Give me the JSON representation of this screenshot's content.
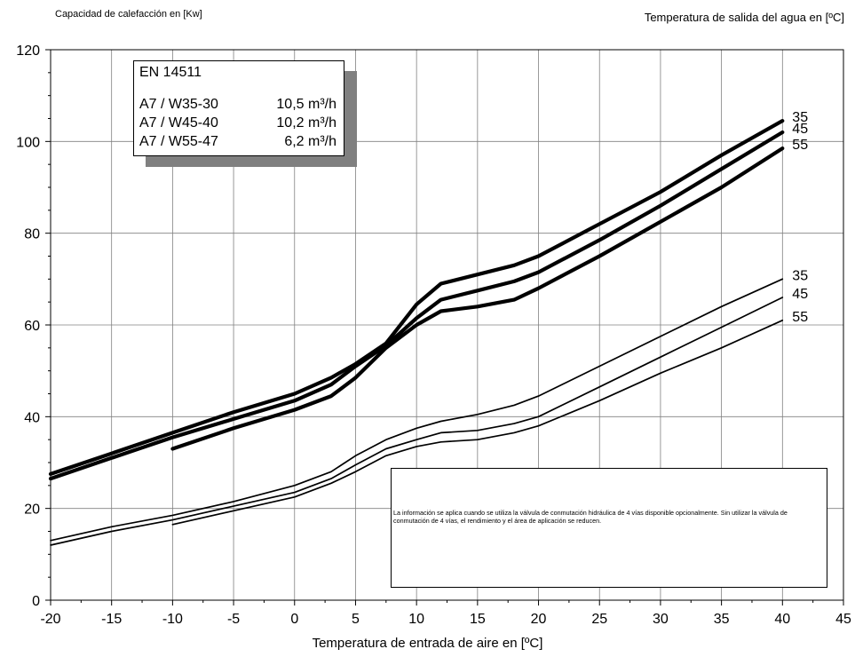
{
  "header": {
    "left_label": "Capacidad de calefacción en [Kw]",
    "right_label": "Temperatura de salida del agua en [ºC]"
  },
  "standard_box": {
    "title": "EN 14511",
    "rows": [
      {
        "label": "A7 / W35-30",
        "value": "10,5 m³/h"
      },
      {
        "label": "A7 / W45-40",
        "value": "10,2 m³/h"
      },
      {
        "label": "A7 / W55-47",
        "value": "6,2 m³/h"
      }
    ]
  },
  "note": {
    "text": "La información se aplica cuando se utiliza la válvula de conmutación hidráulica de 4 vías disponible opcionalmente. Sin utilizar la válvula de conmutación de 4 vías, el rendimiento y el área de aplicación se reducen."
  },
  "colors": {
    "line": "#000000",
    "grid": "#808080",
    "shadow": "#808080"
  },
  "chart_data": {
    "type": "line",
    "title": "",
    "xlabel": "Temperatura de entrada de aire en [ºC]",
    "ylabel": "Capacidad de calefacción en [Kw]",
    "xlim": [
      -20,
      45
    ],
    "ylim": [
      0,
      120
    ],
    "x_ticks": [
      -20,
      -15,
      -10,
      -5,
      0,
      5,
      10,
      15,
      20,
      25,
      30,
      35,
      40,
      45
    ],
    "y_ticks": [
      0,
      20,
      40,
      60,
      80,
      100,
      120
    ],
    "grid": true,
    "series": [
      {
        "name": "35",
        "group": "max",
        "weight": "thick",
        "x": [
          -20,
          -15,
          -10,
          -5,
          0,
          3,
          5,
          7.5,
          10,
          12,
          15,
          18,
          20,
          25,
          30,
          35,
          40
        ],
        "y": [
          27.5,
          32,
          36.5,
          41,
          45,
          48.5,
          51.5,
          56,
          64.5,
          69,
          71,
          73,
          75,
          82,
          89,
          97,
          104.5
        ]
      },
      {
        "name": "45",
        "group": "max",
        "weight": "thick",
        "x": [
          -20,
          -15,
          -10,
          -5,
          0,
          3,
          5,
          7.5,
          10,
          12,
          15,
          18,
          20,
          25,
          30,
          35,
          40
        ],
        "y": [
          26.5,
          31,
          35.5,
          39.5,
          43.5,
          47,
          51,
          55.5,
          61.5,
          65.5,
          67.5,
          69.5,
          71.5,
          78.5,
          86,
          94,
          102
        ]
      },
      {
        "name": "55",
        "group": "max",
        "weight": "thick",
        "x": [
          -10,
          -5,
          0,
          3,
          5,
          7.5,
          10,
          12,
          15,
          18,
          20,
          25,
          30,
          35,
          40
        ],
        "y": [
          33,
          37.5,
          41.5,
          44.5,
          48.5,
          55,
          60,
          63,
          64,
          65.5,
          68,
          75,
          82.5,
          90,
          98.5
        ]
      },
      {
        "name": "35",
        "group": "min",
        "weight": "thin",
        "x": [
          -20,
          -15,
          -10,
          -5,
          0,
          3,
          5,
          7.5,
          10,
          12,
          15,
          18,
          20,
          25,
          30,
          35,
          40
        ],
        "y": [
          13,
          16,
          18.5,
          21.5,
          25,
          28,
          31.5,
          35,
          37.5,
          39,
          40.5,
          42.5,
          44.5,
          51,
          57.5,
          64,
          70
        ]
      },
      {
        "name": "45",
        "group": "min",
        "weight": "thin",
        "x": [
          -20,
          -15,
          -10,
          -5,
          0,
          3,
          5,
          7.5,
          10,
          12,
          15,
          18,
          20,
          25,
          30,
          35,
          40
        ],
        "y": [
          12,
          15,
          17.5,
          20.5,
          23.5,
          26.5,
          29.5,
          33,
          35,
          36.5,
          37,
          38.5,
          40,
          46.5,
          53,
          59.5,
          66
        ]
      },
      {
        "name": "55",
        "group": "min",
        "weight": "thin",
        "x": [
          -10,
          -5,
          0,
          3,
          5,
          7.5,
          10,
          12,
          15,
          18,
          20,
          25,
          30,
          35,
          40
        ],
        "y": [
          16.5,
          19.5,
          22.5,
          25.5,
          28,
          31.5,
          33.5,
          34.5,
          35,
          36.5,
          38,
          43.5,
          49.5,
          55,
          61
        ]
      }
    ]
  }
}
